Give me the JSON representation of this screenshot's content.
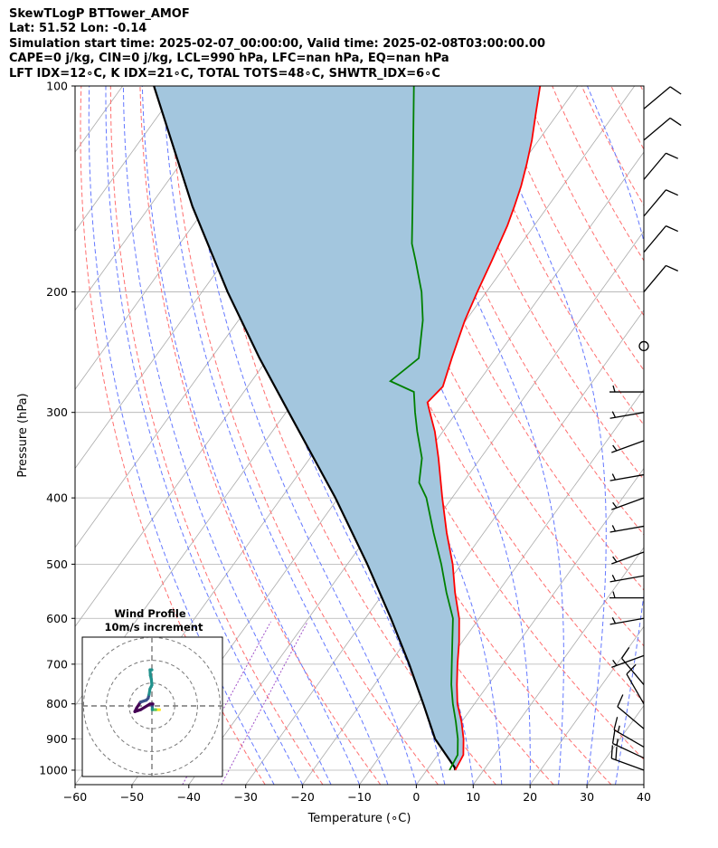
{
  "header": {
    "title": "SkewTLogP BTTower_AMOF",
    "location": "Lat: 51.52   Lon: -0.14",
    "times": "Simulation start time: 2025-02-07_00:00:00, Valid time: 2025-02-08T03:00:00.00",
    "indices1": "CAPE=0 j/kg, CIN=0 j/kg, LCL=990 hPa, LFC=nan hPa, EQ=nan hPa",
    "indices2": "LFT IDX=12∘C, K IDX=21∘C, TOTAL TOTS=48∘C, SHWTR_IDX=6∘C"
  },
  "colors": {
    "temperature": "#ff0000",
    "dewpoint": "#008000",
    "parcel": "#000000",
    "cape_fill": "#a3c6de",
    "isotherm": "#aaaaaa",
    "dry_adiabat": "#ff6e6e",
    "moist_adiabat": "#6478ff",
    "mixing_ratio": "#a050c8"
  },
  "chart_data": [
    {
      "type": "line",
      "title": "SkewTLogP BTTower_AMOF",
      "xlabel": "Temperature (∘C)",
      "ylabel": "Pressure (hPa)",
      "xlim": [
        -60,
        40
      ],
      "ylim": [
        1050,
        100
      ],
      "xticks": [
        "−60",
        "−50",
        "−40",
        "−30",
        "−20",
        "−10",
        "0",
        "10",
        "20",
        "30",
        "40"
      ],
      "yticks": [
        {
          "value": 1000,
          "label": "1000"
        },
        {
          "value": 900,
          "label": "900"
        },
        {
          "value": 800,
          "label": "800"
        },
        {
          "value": 700,
          "label": "700"
        },
        {
          "value": 600,
          "label": "600"
        },
        {
          "value": 500,
          "label": "500"
        },
        {
          "value": 400,
          "label": "400"
        },
        {
          "value": 300,
          "label": "300"
        },
        {
          "value": 200,
          "label": "200"
        },
        {
          "value": 100,
          "label": "100"
        }
      ],
      "grid": true,
      "series": [
        {
          "name": "Temperature",
          "pressure": [
            1000,
            950,
            900,
            850,
            800,
            750,
            700,
            650,
            600,
            550,
            500,
            450,
            400,
            350,
            320,
            300,
            290,
            275,
            250,
            220,
            200,
            180,
            160,
            150,
            140,
            130,
            120,
            110,
            100
          ],
          "values": [
            5,
            4.5,
            2.5,
            0,
            -3,
            -5.5,
            -8,
            -10.5,
            -13.5,
            -17.5,
            -21.5,
            -26.5,
            -31.7,
            -37.4,
            -41.4,
            -44.7,
            -46.4,
            -45.7,
            -47.7,
            -50.2,
            -51.6,
            -53,
            -54.7,
            -55.9,
            -57.3,
            -59.1,
            -61.2,
            -63.8,
            -66.6
          ]
        },
        {
          "name": "Dewpoint",
          "pressure": [
            1000,
            950,
            900,
            850,
            800,
            750,
            700,
            650,
            600,
            550,
            500,
            450,
            400,
            380,
            350,
            320,
            300,
            280,
            270,
            250,
            220,
            200,
            180,
            170,
            150,
            130,
            100
          ],
          "values": [
            4,
            3.5,
            1.5,
            -1,
            -3.8,
            -6.5,
            -9,
            -11.7,
            -14.6,
            -19,
            -23.5,
            -28.8,
            -34.5,
            -37.7,
            -40.3,
            -44.5,
            -47.3,
            -50.1,
            -55.6,
            -53.5,
            -57.6,
            -61.4,
            -66.4,
            -69.2,
            -73.8,
            -79.1,
            -88.8
          ]
        },
        {
          "name": "Parcel profile",
          "pressure": [
            1000,
            990,
            900,
            800,
            700,
            600,
            500,
            400,
            300,
            250,
            200,
            150,
            100
          ],
          "values": [
            5,
            4.5,
            -2.5,
            -9,
            -16.5,
            -25.5,
            -36.5,
            -50.5,
            -69.5,
            -81.5,
            -95.5,
            -112.5,
            -134.5
          ]
        }
      ],
      "shaded_region": "CIN/CAPE area between temperature and parcel profile (no positive CAPE)",
      "wind_barbs": [
        {
          "pressure": 1000,
          "speed_kt": 20,
          "direction_deg": 290
        },
        {
          "pressure": 960,
          "speed_kt": 15,
          "direction_deg": 295
        },
        {
          "pressure": 925,
          "speed_kt": 15,
          "direction_deg": 300
        },
        {
          "pressure": 870,
          "speed_kt": 10,
          "direction_deg": 310
        },
        {
          "pressure": 800,
          "speed_kt": 10,
          "direction_deg": 330
        },
        {
          "pressure": 750,
          "speed_kt": 10,
          "direction_deg": 320
        },
        {
          "pressure": 680,
          "speed_kt": 5,
          "direction_deg": 250
        },
        {
          "pressure": 600,
          "speed_kt": 5,
          "direction_deg": 260
        },
        {
          "pressure": 560,
          "speed_kt": 5,
          "direction_deg": 270
        },
        {
          "pressure": 520,
          "speed_kt": 5,
          "direction_deg": 260
        },
        {
          "pressure": 480,
          "speed_kt": 5,
          "direction_deg": 250
        },
        {
          "pressure": 440,
          "speed_kt": 5,
          "direction_deg": 260
        },
        {
          "pressure": 400,
          "speed_kt": 5,
          "direction_deg": 250
        },
        {
          "pressure": 370,
          "speed_kt": 5,
          "direction_deg": 260
        },
        {
          "pressure": 330,
          "speed_kt": 5,
          "direction_deg": 250
        },
        {
          "pressure": 300,
          "speed_kt": 5,
          "direction_deg": 260
        },
        {
          "pressure": 280,
          "speed_kt": 5,
          "direction_deg": 270
        },
        {
          "pressure": 240,
          "speed_kt": 0,
          "direction_deg": 0
        },
        {
          "pressure": 200,
          "speed_kt": 10,
          "direction_deg": 40
        },
        {
          "pressure": 175,
          "speed_kt": 10,
          "direction_deg": 40
        },
        {
          "pressure": 155,
          "speed_kt": 10,
          "direction_deg": 40
        },
        {
          "pressure": 137,
          "speed_kt": 10,
          "direction_deg": 40
        },
        {
          "pressure": 120,
          "speed_kt": 10,
          "direction_deg": 50
        },
        {
          "pressure": 108,
          "speed_kt": 10,
          "direction_deg": 50
        }
      ]
    },
    {
      "type": "scatter",
      "title": "Wind Profile",
      "subtitle": "10m/s increment",
      "ring_increment_ms": 10,
      "rings": 3,
      "u": [
        4,
        2,
        0.2,
        0.2,
        0.5,
        -1,
        -6,
        -9,
        -8,
        -6,
        -3,
        -2,
        -1.5,
        -1,
        0,
        -0.3,
        -0.8,
        -1,
        0
      ],
      "v": [
        -2,
        -2,
        -2,
        0,
        1,
        1,
        -2,
        -3,
        -1,
        2,
        3,
        4,
        6,
        9,
        11,
        14,
        16,
        19,
        19
      ],
      "colorscale": [
        "#440154",
        "#3b528b",
        "#21918c",
        "#5ec962",
        "#fde725"
      ]
    }
  ]
}
